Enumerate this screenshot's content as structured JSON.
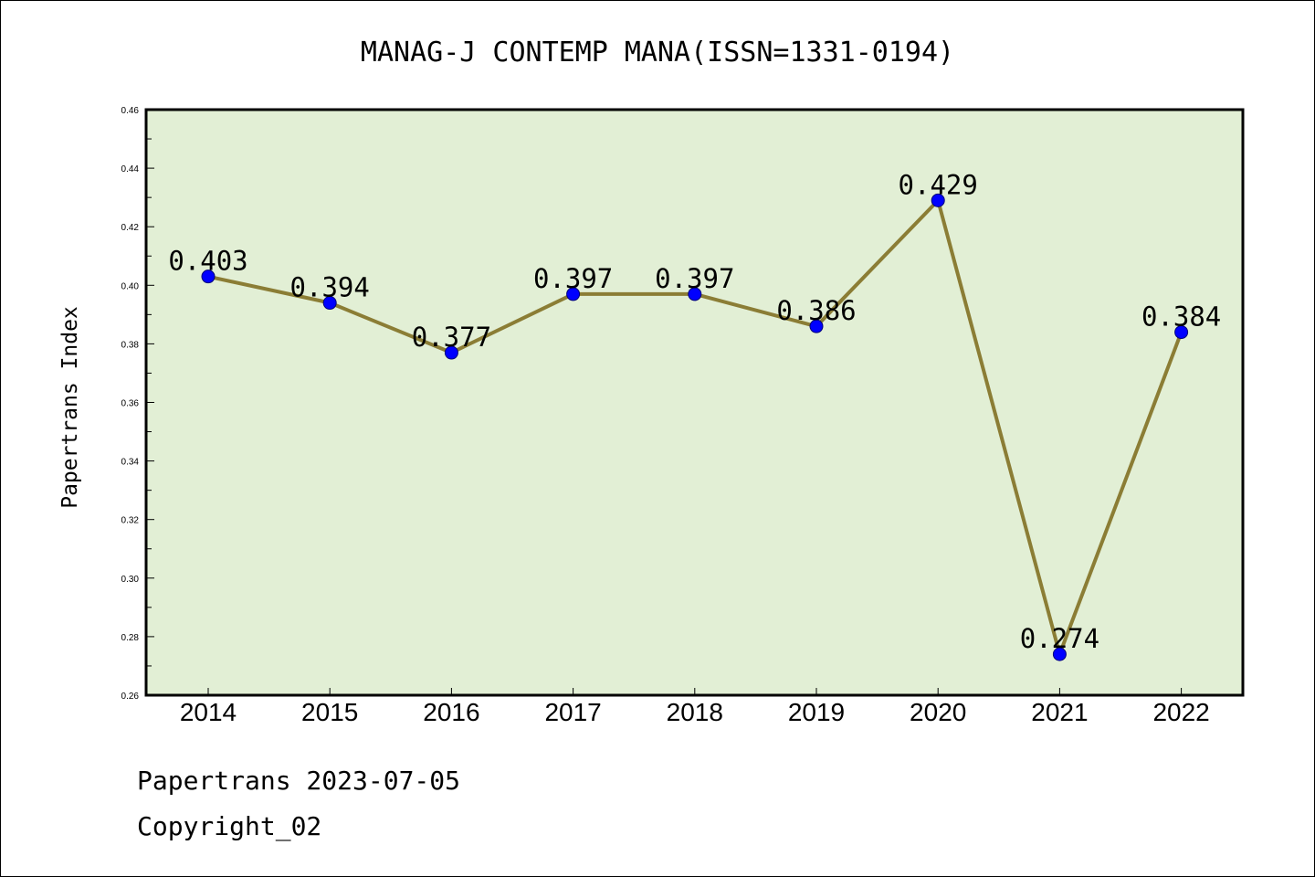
{
  "chart_data": {
    "type": "line",
    "title": "MANAG-J CONTEMP MANA(ISSN=1331-0194)",
    "xlabel": "",
    "ylabel": "Papertrans Index",
    "categories": [
      "2014",
      "2015",
      "2016",
      "2017",
      "2018",
      "2019",
      "2020",
      "2021",
      "2022"
    ],
    "series": [
      {
        "values": [
          0.403,
          0.394,
          0.377,
          0.397,
          0.397,
          0.386,
          0.429,
          0.274,
          0.384
        ],
        "labels": [
          "0.403",
          "0.394",
          "0.377",
          "0.397",
          "0.397",
          "0.386",
          "0.429",
          "0.274",
          "0.384"
        ]
      }
    ],
    "ylim": [
      0.26,
      0.46
    ],
    "yticks": [
      "0.26",
      "0.28",
      "0.30",
      "0.32",
      "0.34",
      "0.36",
      "0.38",
      "0.40",
      "0.42",
      "0.44",
      "0.46"
    ],
    "grid": false,
    "legend": "none",
    "colors": {
      "plot_background": "#e2efd5",
      "line": "#8b7d35",
      "marker": "#0000ff",
      "marker_edge": "#00007a"
    }
  },
  "footer": {
    "date_line": "Papertrans 2023-07-05",
    "copyright": "Copyright_02"
  }
}
